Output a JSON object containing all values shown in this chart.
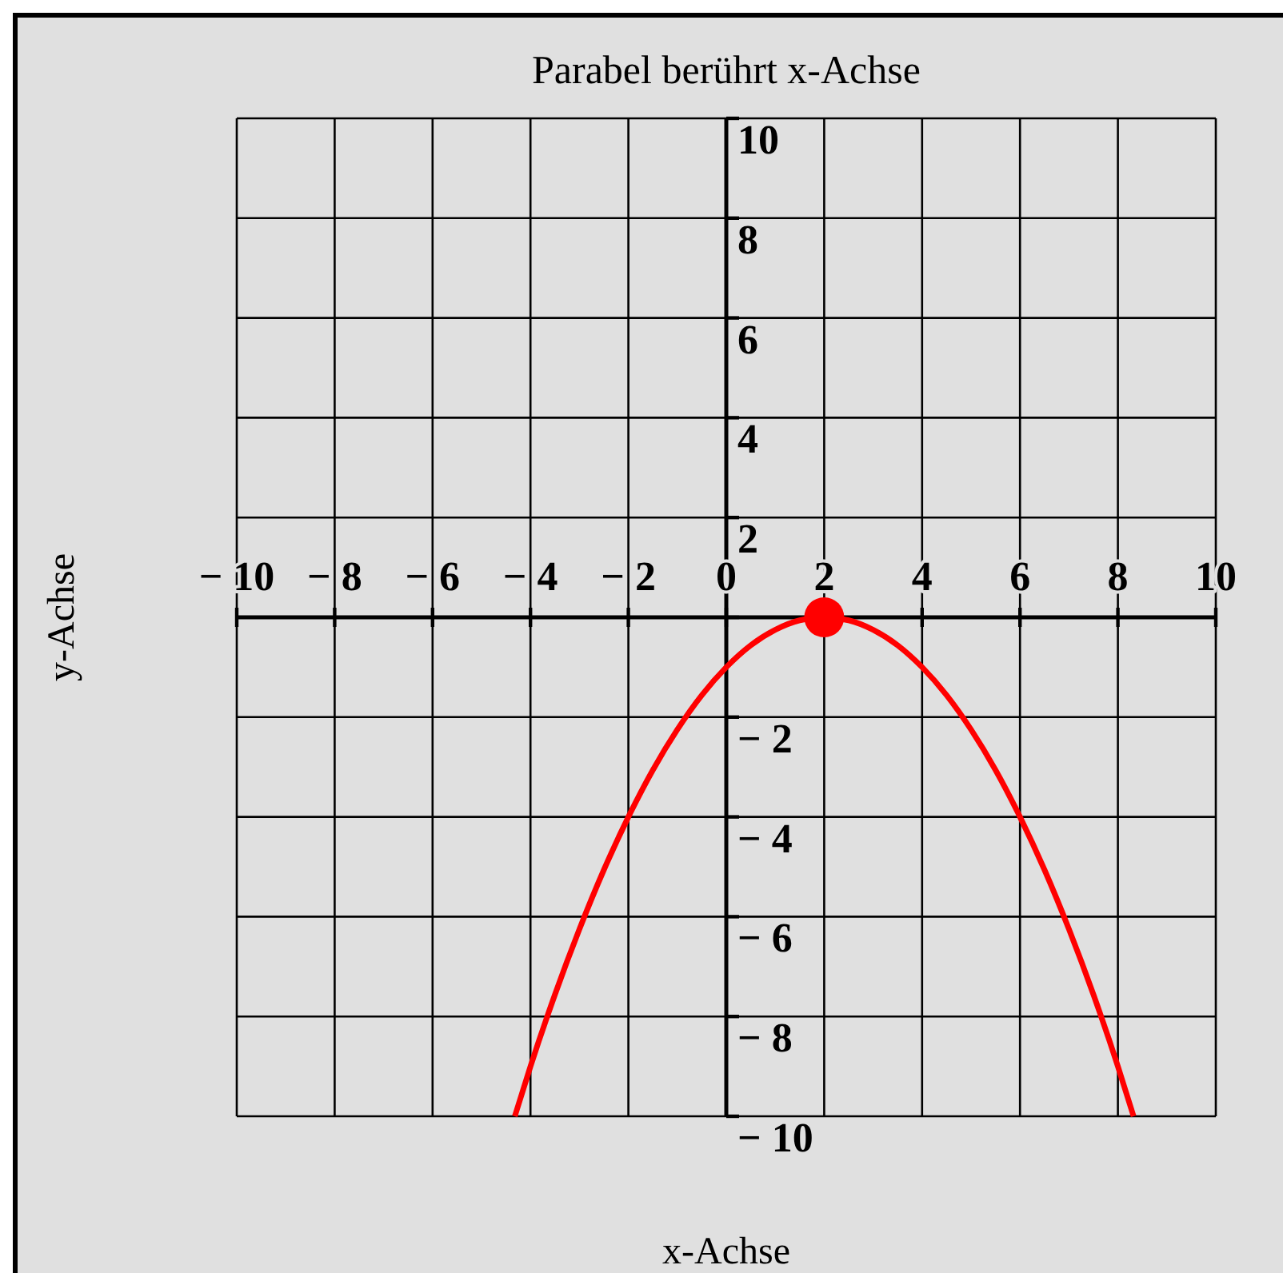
{
  "chart_data": {
    "type": "line",
    "title": "Parabel berührt x-Achse",
    "xlabel": "x-Achse",
    "ylabel": "y-Achse",
    "xlim": [
      -10,
      10
    ],
    "ylim": [
      -10,
      10
    ],
    "xticks": [
      {
        "value": -10,
        "label": "− 10"
      },
      {
        "value": -8,
        "label": "− 8"
      },
      {
        "value": -6,
        "label": "− 6"
      },
      {
        "value": -4,
        "label": "− 4"
      },
      {
        "value": -2,
        "label": "− 2"
      },
      0,
      2,
      4,
      6,
      8,
      10
    ],
    "yticks": [
      {
        "value": -10,
        "label": "− 10"
      },
      {
        "value": -8,
        "label": "− 8"
      },
      {
        "value": -6,
        "label": "− 6"
      },
      {
        "value": -4,
        "label": "− 4"
      },
      {
        "value": -2,
        "label": "− 2"
      },
      {
        "value": 0,
        "label": null
      },
      2,
      4,
      6,
      8,
      10
    ],
    "grid": true,
    "series": [
      {
        "color": "#ff0000",
        "marker": "none",
        "x": [
          -4.32,
          -4,
          -3.5,
          -3,
          -2.5,
          -2,
          -1.5,
          -1,
          -0.5,
          0,
          0.5,
          1,
          1.5,
          2,
          2.5,
          3,
          3.5,
          4,
          4.5,
          5,
          5.5,
          6,
          6.5,
          7,
          7.5,
          8,
          8.32
        ],
        "values": [
          -10,
          -9,
          -7.56,
          -6.25,
          -5.06,
          -4,
          -3.06,
          -2.25,
          -1.56,
          -1,
          -0.56,
          -0.25,
          -0.06,
          0,
          -0.06,
          -0.25,
          -0.56,
          -1,
          -1.56,
          -2.25,
          -3.06,
          -4,
          -5.06,
          -6.25,
          -7.56,
          -9,
          -10
        ]
      },
      {
        "type": "scatter",
        "color": "#ff0000",
        "marker": "circle",
        "x": [
          2
        ],
        "values": [
          0
        ]
      }
    ]
  }
}
